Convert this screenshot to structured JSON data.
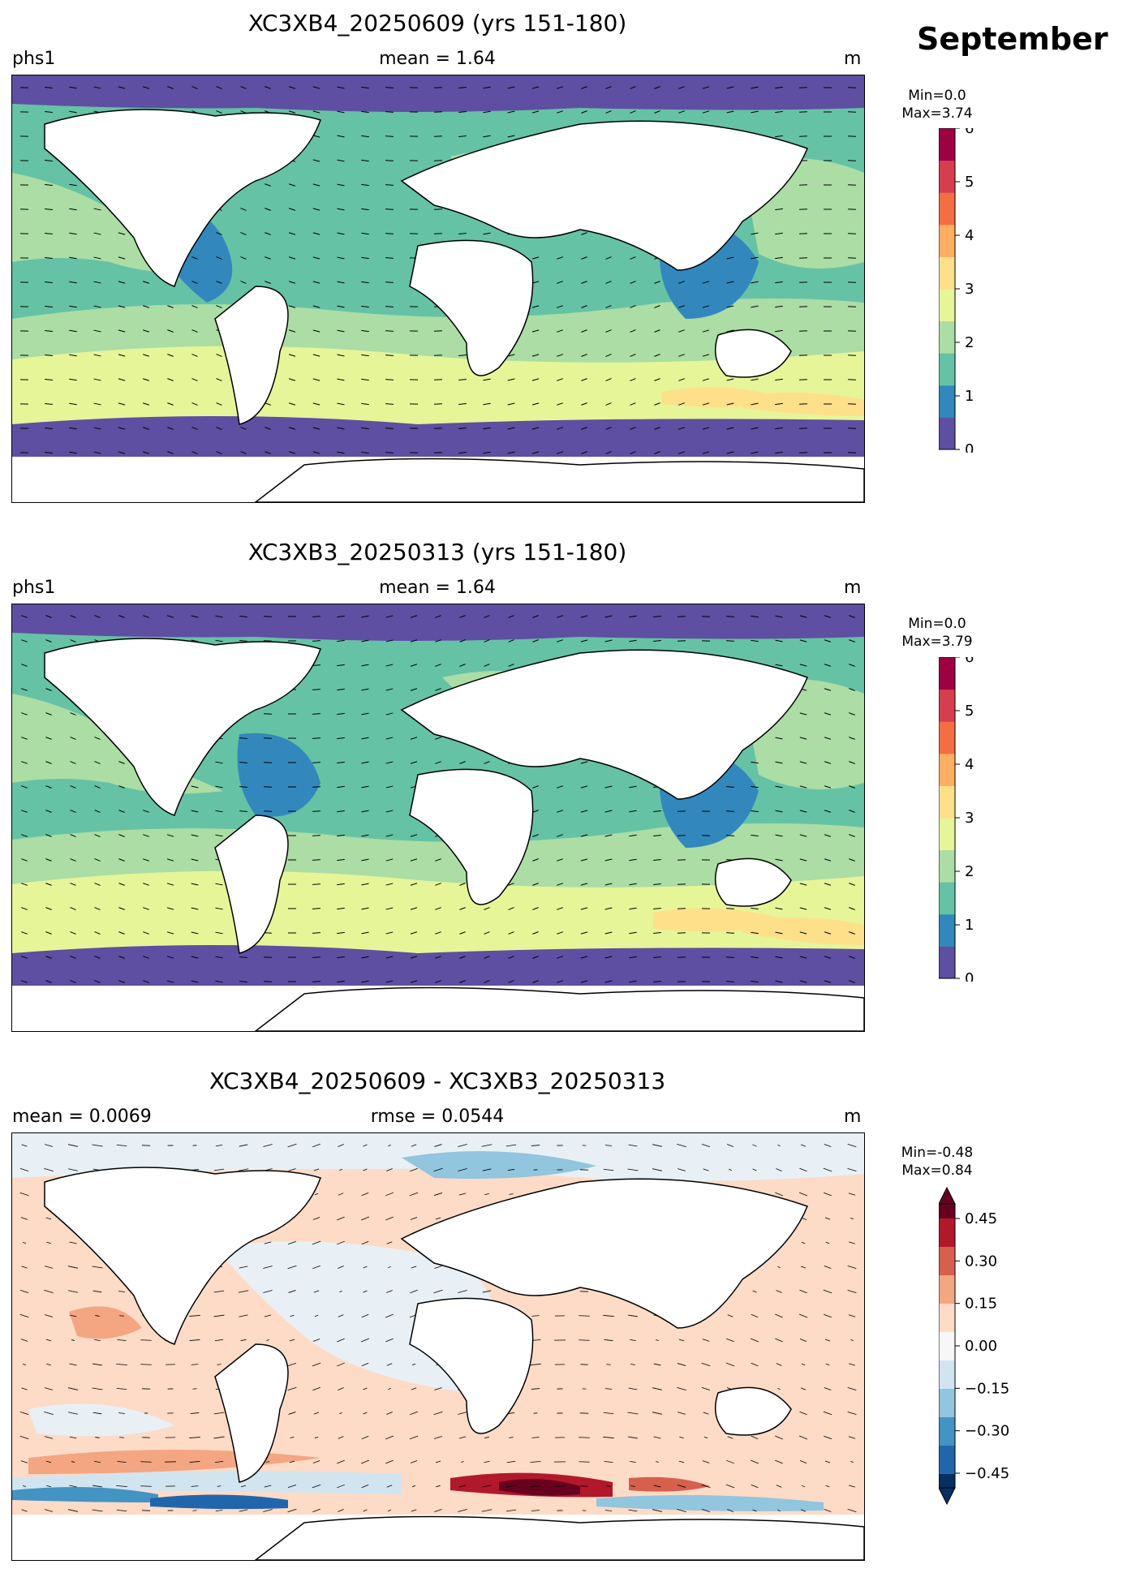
{
  "month": "September",
  "panels": [
    {
      "title": "XC3XB4_20250609 (yrs 151-180)",
      "left": "phs1",
      "center": "mean = 1.64",
      "right": "m",
      "min": "Min=0.0",
      "max": "Max=3.74",
      "colorbar_ticks": [
        "0",
        "1",
        "2",
        "3",
        "4",
        "5",
        "6"
      ]
    },
    {
      "title": "XC3XB3_20250313 (yrs 151-180)",
      "left": "phs1",
      "center": "mean = 1.64",
      "right": "m",
      "min": "Min=0.0",
      "max": "Max=3.79",
      "colorbar_ticks": [
        "0",
        "1",
        "2",
        "3",
        "4",
        "5",
        "6"
      ]
    },
    {
      "title": "XC3XB4_20250609 - XC3XB3_20250313",
      "left": "mean = 0.0069",
      "center": "rmse = 0.0544",
      "right": "m",
      "min": "Min=-0.48",
      "max": "Max=0.84",
      "colorbar_ticks": [
        "0.45",
        "0.30",
        "0.15",
        "0.00",
        "−0.15",
        "−0.30",
        "−0.45"
      ]
    }
  ],
  "colors": {
    "spectral": [
      "#5e4fa2",
      "#3288bd",
      "#66c2a5",
      "#abdda4",
      "#e6f598",
      "#fee08b",
      "#fdae61",
      "#f46d43",
      "#d53e4f",
      "#9e0142"
    ],
    "rdbu": [
      "#053061",
      "#2166ac",
      "#4393c3",
      "#92c5de",
      "#d1e5f0",
      "#f7f7f7",
      "#fddbc7",
      "#f4a582",
      "#d6604d",
      "#b2182b",
      "#67001f"
    ]
  }
}
